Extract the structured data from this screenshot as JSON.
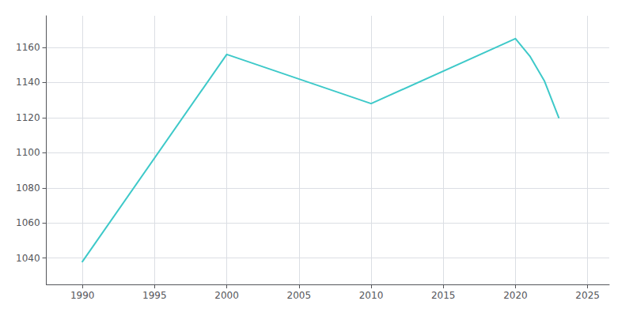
{
  "chart_data": {
    "type": "line",
    "x": [
      1990,
      2000,
      2010,
      2020,
      2021,
      2022,
      2023
    ],
    "values": [
      1038,
      1156,
      1128,
      1165,
      1155,
      1141,
      1120
    ],
    "color": "#3ec9c9",
    "xlim": [
      1987.5,
      2026.5
    ],
    "ylim": [
      1025,
      1178
    ],
    "xticks": [
      1990,
      1995,
      2000,
      2005,
      2010,
      2015,
      2020,
      2025
    ],
    "yticks": [
      1040,
      1060,
      1080,
      1100,
      1120,
      1140,
      1160
    ],
    "grid": true
  }
}
